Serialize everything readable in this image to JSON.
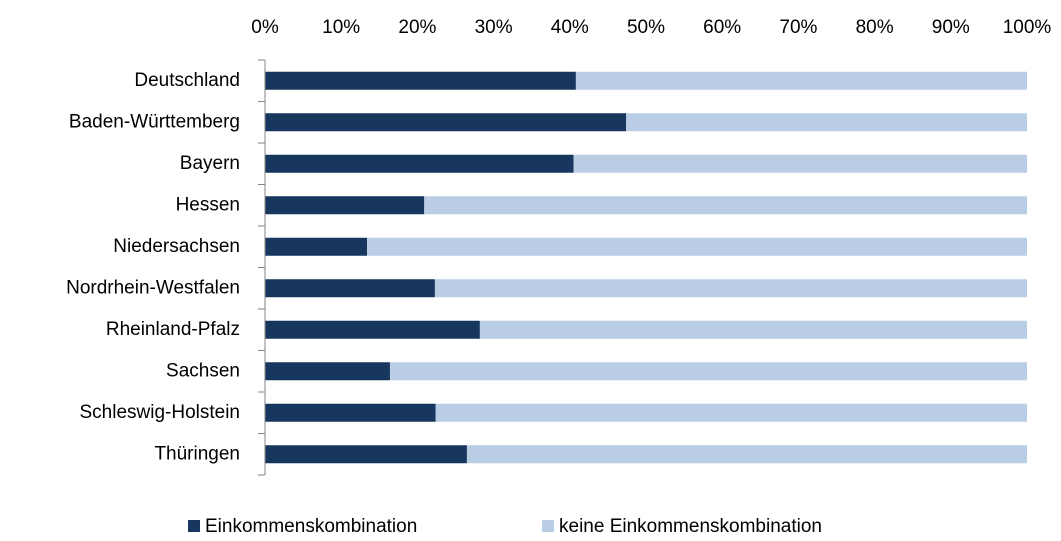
{
  "chart_data": {
    "type": "stacked_barh",
    "categories": [
      "Deutschland",
      "Baden-Württemberg",
      "Bayern",
      "Hessen",
      "Niedersachsen",
      "Nordrhein-Westfalen",
      "Rheinland-Pfalz",
      "Sachsen",
      "Schleswig-Holstein",
      "Thüringen"
    ],
    "series": [
      {
        "name": "Einkommenskombination",
        "color": "#17375e",
        "values": [
          40.8,
          47.4,
          40.5,
          20.9,
          13.4,
          22.3,
          28.2,
          16.4,
          22.4,
          26.5
        ]
      },
      {
        "name": "keine Einkommenskombination",
        "color": "#b9cde5",
        "values": [
          59.2,
          52.6,
          59.5,
          79.1,
          86.6,
          77.7,
          71.8,
          83.6,
          77.6,
          73.5
        ]
      }
    ],
    "xlim": [
      0,
      100
    ],
    "xticks": [
      {
        "value": 0,
        "label": "0%"
      },
      {
        "value": 10,
        "label": "10%"
      },
      {
        "value": 20,
        "label": "20%"
      },
      {
        "value": 30,
        "label": "30%"
      },
      {
        "value": 40,
        "label": "40%"
      },
      {
        "value": 50,
        "label": "50%"
      },
      {
        "value": 60,
        "label": "60%"
      },
      {
        "value": 70,
        "label": "70%"
      },
      {
        "value": 80,
        "label": "80%"
      },
      {
        "value": 90,
        "label": "90%"
      },
      {
        "value": 100,
        "label": "100%"
      }
    ],
    "grid": false,
    "legend": "bottom"
  }
}
